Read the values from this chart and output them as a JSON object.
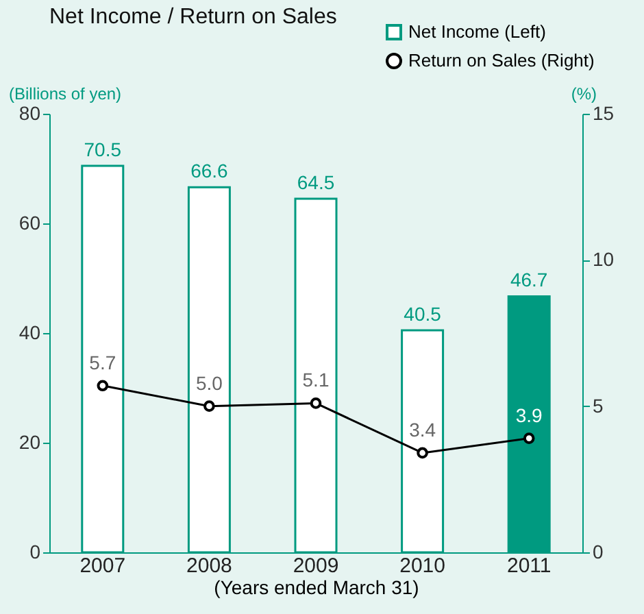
{
  "chart_data": {
    "type": "bar",
    "title": "Net Income / Return on Sales",
    "ylabel": "(Billions of yen)",
    "y2label": "(%)",
    "xlabel": "(Years ended March 31)",
    "categories": [
      "2007",
      "2008",
      "2009",
      "2010",
      "2011"
    ],
    "series": [
      {
        "name": "Net Income (Left)",
        "color": "#009a80",
        "colors": [
          "#ffffff",
          "#ffffff",
          "#ffffff",
          "#ffffff",
          "#009a80"
        ],
        "values": [
          70.5,
          66.6,
          64.5,
          40.5,
          46.7
        ]
      },
      {
        "name": "Return on Sales (Right)",
        "type": "line",
        "axis": "y2",
        "color": "#000000",
        "marker": "circle",
        "values": [
          5.7,
          5.0,
          5.1,
          3.4,
          3.9
        ],
        "value_labels": [
          "5.7",
          "5.0",
          "5.1",
          "3.4",
          "3.9"
        ]
      }
    ],
    "ylim": [
      0,
      80
    ],
    "yticks": [
      0,
      20,
      40,
      60,
      80
    ],
    "y2lim": [
      0,
      15
    ],
    "y2ticks": [
      0,
      5,
      10,
      15
    ],
    "data_labels": true,
    "legend": "top right"
  }
}
